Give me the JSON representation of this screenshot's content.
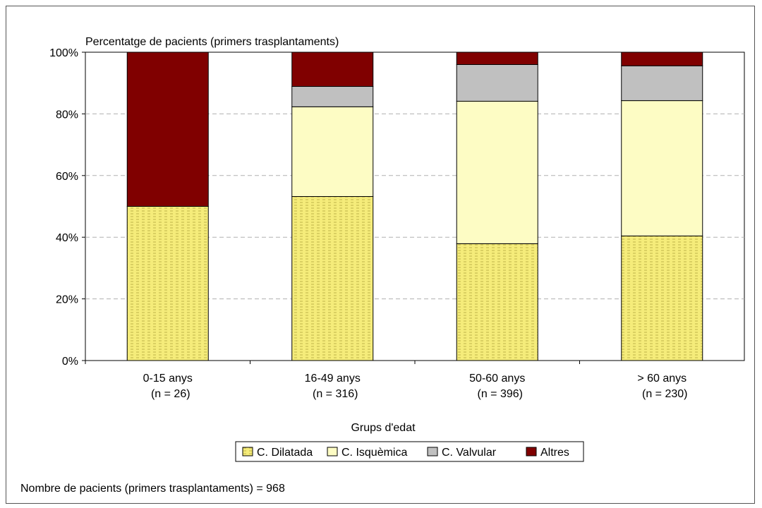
{
  "chart_data": {
    "type": "bar",
    "stacked": true,
    "title": "Percentatge de pacients (primers trasplantaments)",
    "xlabel": "Grups d'edat",
    "ylabel": "",
    "ylim": [
      0,
      100
    ],
    "yticks": [
      "0%",
      "20%",
      "40%",
      "60%",
      "80%",
      "100%"
    ],
    "categories": [
      {
        "label": "0-15 anys",
        "sub": "(n = 26)"
      },
      {
        "label": "16-49 anys",
        "sub": "(n = 316)"
      },
      {
        "label": "50-60 anys",
        "sub": "(n = 396)"
      },
      {
        "label": "> 60 anys",
        "sub": "(n = 230)"
      }
    ],
    "series": [
      {
        "name": "C. Dilatada",
        "color": "#f5ec7a",
        "pattern": "dashed",
        "values": [
          50,
          53.2,
          37.9,
          40.4
        ]
      },
      {
        "name": "C. Isquèmica",
        "color": "#fdfcc4",
        "values": [
          0,
          29.1,
          46.2,
          43.9
        ]
      },
      {
        "name": "C. Valvular",
        "color": "#c0c0c0",
        "values": [
          0,
          6.6,
          11.9,
          11.3
        ]
      },
      {
        "name": "Altres",
        "color": "#800000",
        "values": [
          50,
          11.1,
          4.0,
          4.4
        ]
      }
    ],
    "grid": true,
    "legend": "bottom"
  },
  "footer": "Nombre de pacients (primers trasplantaments) = 968"
}
